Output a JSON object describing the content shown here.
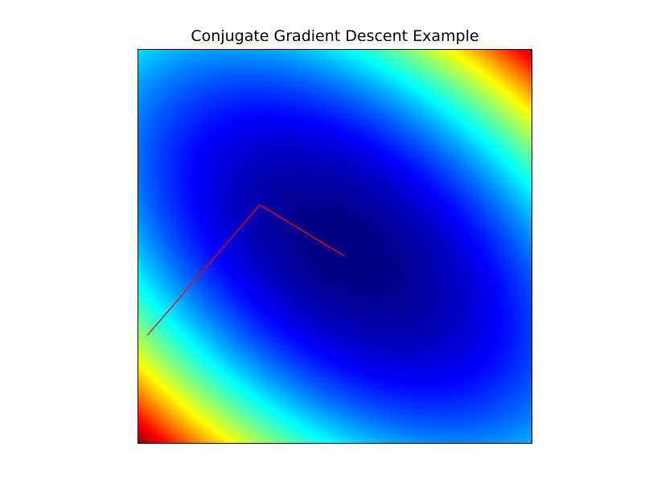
{
  "chart_data": {
    "type": "heatmap",
    "title": "Conjugate Gradient Descent Example",
    "xlabel": "",
    "ylabel": "",
    "colormap": "jet",
    "ticks_shown": false,
    "grid": false,
    "xlim": [
      0,
      1
    ],
    "ylim": [
      0,
      1
    ],
    "surface": {
      "form": "quadratic bowl",
      "minimum": [
        0.53,
        0.49
      ],
      "coefficients": {
        "xx": 1.0,
        "xy": 1.15,
        "yy": 1.3
      },
      "relative_value_max": 1.0
    },
    "series": [
      {
        "kind": "descent-path",
        "color": "#ff0000",
        "points": [
          {
            "x": 0.025,
            "y": 0.275
          },
          {
            "x": 0.31,
            "y": 0.605
          },
          {
            "x": 0.525,
            "y": 0.475
          }
        ]
      }
    ]
  }
}
